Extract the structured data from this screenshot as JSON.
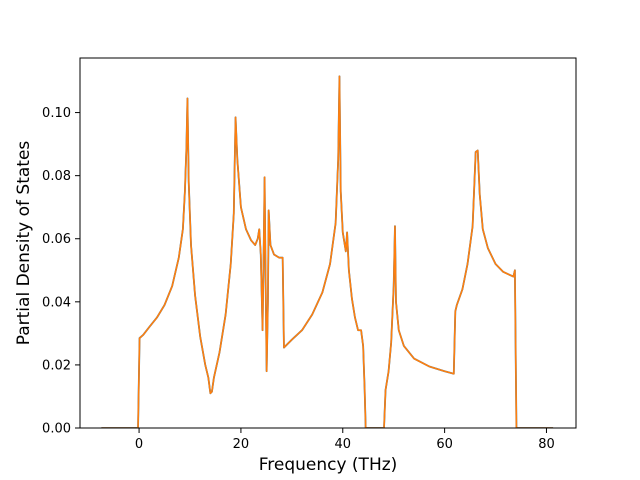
{
  "chart_data": {
    "type": "line",
    "title": "",
    "xlabel": "Frequency (THz)",
    "ylabel": "Partial Density of States",
    "xlim": [
      -11.6,
      85.8
    ],
    "ylim": [
      0.0,
      0.1173
    ],
    "xticks": [
      0,
      20,
      40,
      60,
      80
    ],
    "xtick_labels": [
      "0",
      "20",
      "40",
      "60",
      "80"
    ],
    "yticks": [
      0.0,
      0.02,
      0.04,
      0.06,
      0.08,
      0.1
    ],
    "ytick_labels": [
      "0.00",
      "0.02",
      "0.04",
      "0.06",
      "0.08",
      "0.10"
    ],
    "grid": false,
    "legend": "none",
    "series": [
      {
        "color": "#ff7f0e",
        "secondary_color": "#1f77b4",
        "points": [
          [
            -7.4,
            0.0
          ],
          [
            -0.2,
            0.0
          ],
          [
            0.1,
            0.0285
          ],
          [
            0.8,
            0.0295
          ],
          [
            2.0,
            0.032
          ],
          [
            3.5,
            0.035
          ],
          [
            5.0,
            0.039
          ],
          [
            6.5,
            0.045
          ],
          [
            7.8,
            0.054
          ],
          [
            8.6,
            0.063
          ],
          [
            9.0,
            0.075
          ],
          [
            9.3,
            0.089
          ],
          [
            9.5,
            0.1045
          ],
          [
            9.75,
            0.078
          ],
          [
            10.2,
            0.058
          ],
          [
            11.0,
            0.042
          ],
          [
            12.0,
            0.029
          ],
          [
            13.0,
            0.02
          ],
          [
            13.6,
            0.016
          ],
          [
            14.0,
            0.011
          ],
          [
            14.3,
            0.0115
          ],
          [
            14.7,
            0.016
          ],
          [
            15.8,
            0.024
          ],
          [
            17.0,
            0.036
          ],
          [
            18.0,
            0.052
          ],
          [
            18.6,
            0.068
          ],
          [
            18.95,
            0.0985
          ],
          [
            19.3,
            0.085
          ],
          [
            20.0,
            0.07
          ],
          [
            21.0,
            0.063
          ],
          [
            22.0,
            0.0595
          ],
          [
            22.8,
            0.058
          ],
          [
            23.3,
            0.06
          ],
          [
            23.6,
            0.063
          ],
          [
            23.9,
            0.055
          ],
          [
            24.25,
            0.031
          ],
          [
            24.5,
            0.06
          ],
          [
            24.65,
            0.0795
          ],
          [
            24.8,
            0.055
          ],
          [
            25.05,
            0.018
          ],
          [
            25.3,
            0.04
          ],
          [
            25.45,
            0.069
          ],
          [
            25.8,
            0.058
          ],
          [
            26.5,
            0.055
          ],
          [
            27.5,
            0.054
          ],
          [
            28.0,
            0.054
          ],
          [
            28.2,
            0.054
          ],
          [
            28.45,
            0.0255
          ],
          [
            30.0,
            0.028
          ],
          [
            32.0,
            0.031
          ],
          [
            34.0,
            0.036
          ],
          [
            36.0,
            0.043
          ],
          [
            37.5,
            0.052
          ],
          [
            38.6,
            0.065
          ],
          [
            39.1,
            0.085
          ],
          [
            39.35,
            0.1115
          ],
          [
            39.6,
            0.075
          ],
          [
            40.0,
            0.062
          ],
          [
            40.6,
            0.056
          ],
          [
            40.85,
            0.062
          ],
          [
            41.2,
            0.05
          ],
          [
            41.8,
            0.041
          ],
          [
            42.4,
            0.035
          ],
          [
            43.0,
            0.031
          ],
          [
            43.6,
            0.031
          ],
          [
            44.0,
            0.026
          ],
          [
            44.3,
            0.012
          ],
          [
            44.5,
            0.0
          ],
          [
            48.1,
            0.0
          ],
          [
            48.4,
            0.012
          ],
          [
            49.0,
            0.018
          ],
          [
            49.5,
            0.027
          ],
          [
            50.0,
            0.045
          ],
          [
            50.25,
            0.064
          ],
          [
            50.45,
            0.04
          ],
          [
            51.0,
            0.031
          ],
          [
            52.0,
            0.026
          ],
          [
            54.0,
            0.022
          ],
          [
            57.0,
            0.0195
          ],
          [
            60.0,
            0.018
          ],
          [
            61.8,
            0.0172
          ],
          [
            62.1,
            0.037
          ],
          [
            62.4,
            0.039
          ],
          [
            63.5,
            0.044
          ],
          [
            64.5,
            0.052
          ],
          [
            65.5,
            0.064
          ],
          [
            66.1,
            0.0875
          ],
          [
            66.5,
            0.088
          ],
          [
            66.9,
            0.074
          ],
          [
            67.5,
            0.063
          ],
          [
            68.5,
            0.057
          ],
          [
            70.0,
            0.052
          ],
          [
            71.5,
            0.0495
          ],
          [
            73.5,
            0.048
          ],
          [
            73.8,
            0.05
          ],
          [
            74.1,
            0.0
          ],
          [
            81.3,
            0.0
          ]
        ]
      }
    ]
  }
}
